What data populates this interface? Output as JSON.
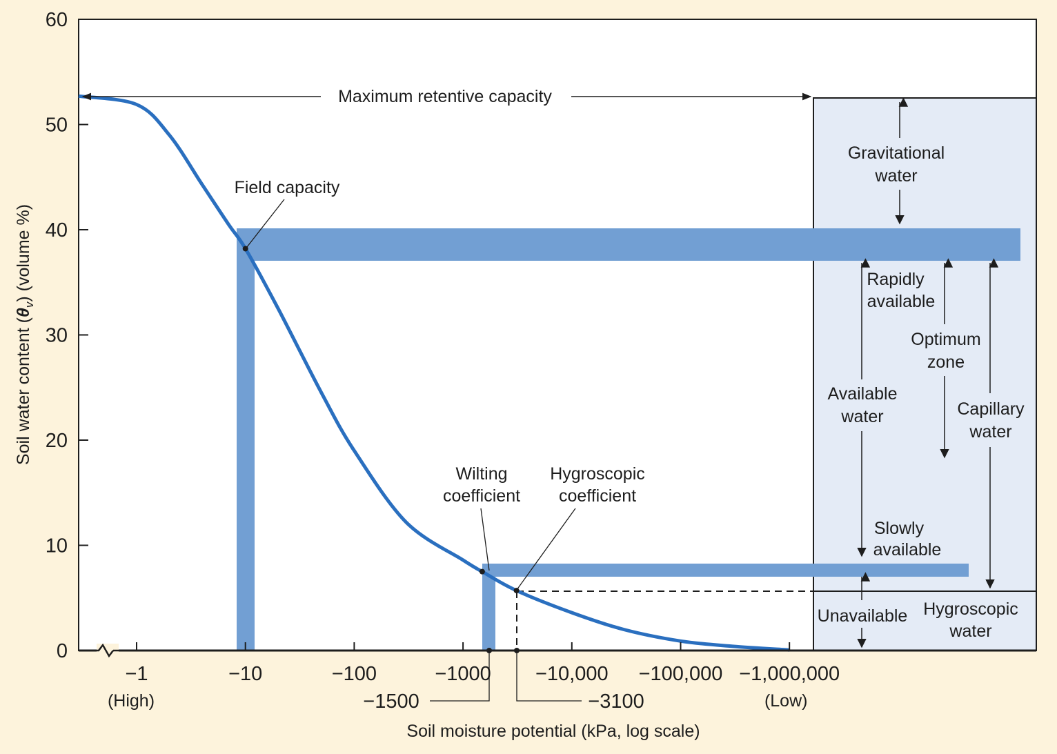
{
  "chart_data": {
    "type": "line",
    "title": "",
    "xlabel": "Soil moisture potential (kPa, log scale)",
    "ylabel_prefix": "Soil water content (",
    "ylabel_theta": "θ",
    "ylabel_sub": "v",
    "ylabel_suffix": ") (volume %)",
    "x_scale": "log",
    "ylim": [
      0,
      60
    ],
    "y_ticks": [
      "0",
      "10",
      "20",
      "30",
      "40",
      "50",
      "60"
    ],
    "x_ticks": [
      {
        "value": -1,
        "label": "−1"
      },
      {
        "value": -10,
        "label": "−10"
      },
      {
        "value": -100,
        "label": "−100"
      },
      {
        "value": -1000,
        "label": "−1000"
      },
      {
        "value": -10000,
        "label": "−10,000"
      },
      {
        "value": -100000,
        "label": "−100,000"
      },
      {
        "value": -1000000,
        "label": "−1,000,000"
      }
    ],
    "x_end_labels": {
      "high": "(High)",
      "low": "(Low)"
    },
    "series": [
      {
        "name": "",
        "color": "#2a6fbf",
        "points": [
          [
            -0.5,
            52.7
          ],
          [
            -1,
            51.9
          ],
          [
            -2,
            49.0
          ],
          [
            -4,
            44.3
          ],
          [
            -7,
            40.5
          ],
          [
            -10,
            38.2
          ],
          [
            -20,
            32.5
          ],
          [
            -50,
            24.5
          ],
          [
            -100,
            19.0
          ],
          [
            -300,
            12.2
          ],
          [
            -1000,
            8.6
          ],
          [
            -1500,
            7.5
          ],
          [
            -3100,
            5.7
          ],
          [
            -10000,
            3.6
          ],
          [
            -30000,
            2.0
          ],
          [
            -100000,
            0.9
          ],
          [
            -300000,
            0.4
          ],
          [
            -1000000,
            0.05
          ]
        ]
      }
    ],
    "points_of_interest": {
      "field_capacity": {
        "x": -10,
        "y": 38.2,
        "label": "Field capacity"
      },
      "wilting_coefficient": {
        "x": -1500,
        "y": 7.5,
        "label_line1": "Wilting",
        "label_line2": "coefficient",
        "x_label": "−1500"
      },
      "hygroscopic_coefficient": {
        "x": -3100,
        "y": 5.7,
        "label_line1": "Hygroscopic",
        "label_line2": "coefficient",
        "x_label": "−3100"
      }
    },
    "maximum_retentive_capacity": {
      "y": 52.7,
      "label": "Maximum retentive capacity"
    },
    "right_panel": {
      "gravitational": [
        "Gravitational",
        "water"
      ],
      "rapidly": [
        "Rapidly",
        "available"
      ],
      "optimum": [
        "Optimum",
        "zone"
      ],
      "available": [
        "Available",
        "water"
      ],
      "capillary": [
        "Capillary",
        "water"
      ],
      "slowly": [
        "Slowly",
        "available"
      ],
      "unavailable": "Unavailable",
      "hygroscopic_water": [
        "Hygroscopic",
        "water"
      ]
    },
    "colors": {
      "background": "#fdf3dc",
      "plot_bg": "#ffffff",
      "panel_bg": "#e4ebf6",
      "band": "#729fd3",
      "curve": "#2a6fbf"
    }
  }
}
